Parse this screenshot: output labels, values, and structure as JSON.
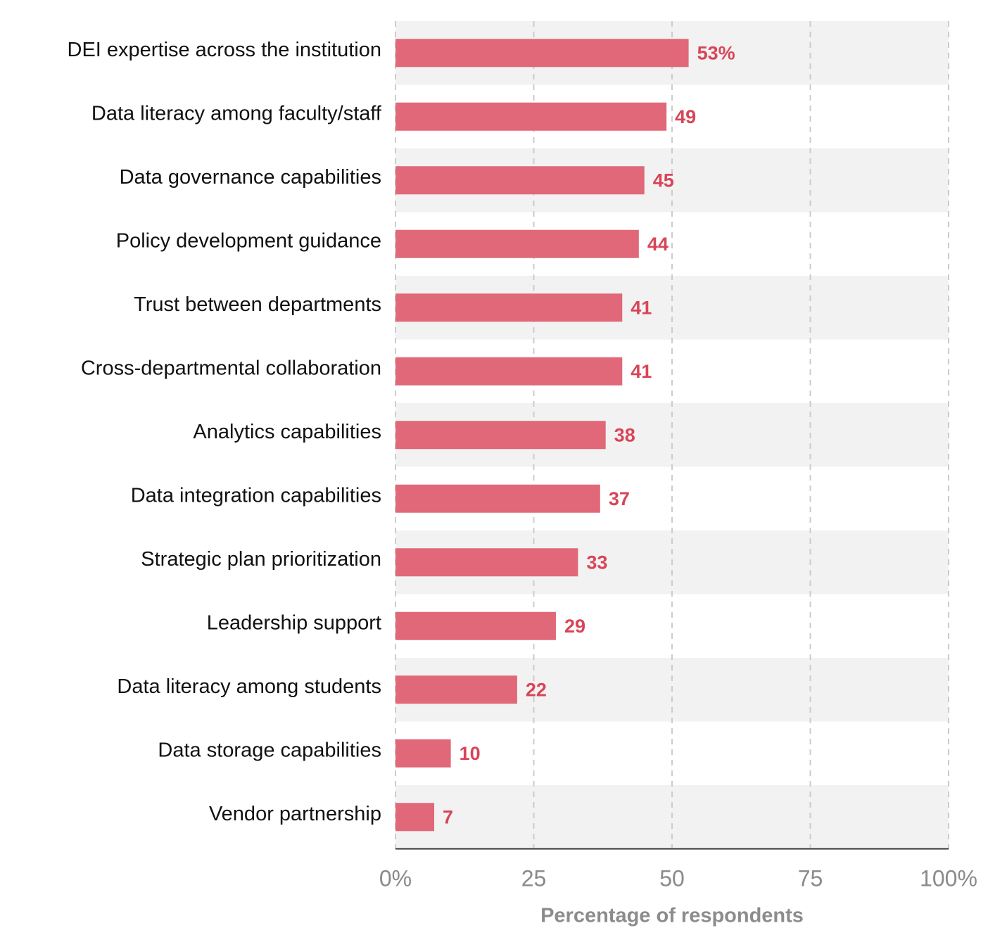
{
  "chart_data": {
    "type": "bar",
    "orientation": "horizontal",
    "title": "",
    "xlabel": "Percentage of respondents",
    "ylabel": "",
    "xlim": [
      0,
      100
    ],
    "grid": true,
    "categories": [
      "DEI expertise across the institution",
      "Data literacy among faculty/staff",
      "Data governance capabilities",
      "Policy development guidance",
      "Trust between departments",
      "Cross-departmental collaboration",
      "Analytics capabilities",
      "Data integration capabilities",
      "Strategic plan prioritization",
      "Leadership support",
      "Data literacy among students",
      "Data storage capabilities",
      "Vendor partnership"
    ],
    "values": [
      53,
      49,
      45,
      44,
      41,
      41,
      38,
      37,
      33,
      29,
      22,
      10,
      7
    ],
    "value_labels": [
      "53%",
      "49",
      "45",
      "44",
      "41",
      "41",
      "38",
      "37",
      "33",
      "29",
      "22",
      "10",
      "7"
    ],
    "x_ticks": [
      0,
      25,
      50,
      75,
      100
    ],
    "x_tick_labels": [
      "0%",
      "25",
      "50",
      "75",
      "100%"
    ],
    "colors": {
      "bar": "#e06878",
      "value_label": "#d84558",
      "band": "#f2f2f2",
      "grid": "#cccccc",
      "axis": "#333333"
    }
  }
}
